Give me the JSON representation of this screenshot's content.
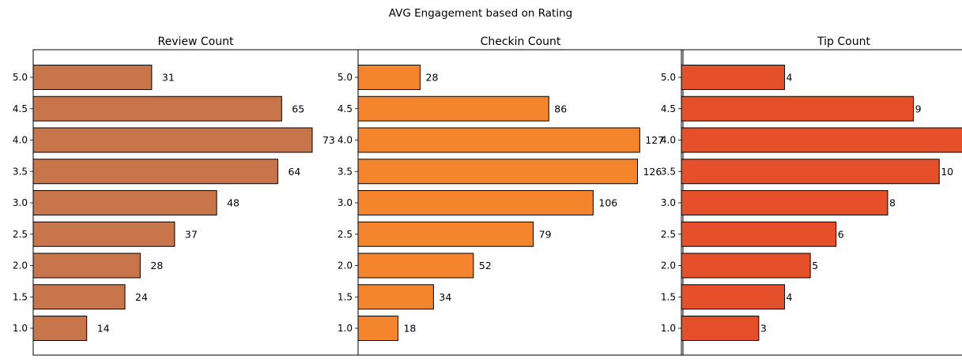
{
  "figure": {
    "title": "AVG Engagement based on Rating"
  },
  "chart_data": [
    {
      "type": "bar",
      "orientation": "horizontal",
      "title": "Review Count",
      "categories": [
        "1.0",
        "1.5",
        "2.0",
        "2.5",
        "3.0",
        "3.5",
        "4.0",
        "4.5",
        "5.0"
      ],
      "values": [
        14,
        24,
        28,
        37,
        48,
        64,
        73,
        65,
        31
      ],
      "xlabel": "",
      "ylabel": "",
      "xlim": [
        0,
        85
      ],
      "color": "#c8754b",
      "edgecolor": "#000000",
      "x_ticks_visible": false,
      "grid": false
    },
    {
      "type": "bar",
      "orientation": "horizontal",
      "title": "Checkin Count",
      "categories": [
        "1.0",
        "1.5",
        "2.0",
        "2.5",
        "3.0",
        "3.5",
        "4.0",
        "4.5",
        "5.0"
      ],
      "values": [
        18,
        34,
        52,
        79,
        106,
        126,
        127,
        86,
        28
      ],
      "xlabel": "",
      "ylabel": "",
      "xlim": [
        0,
        146.5
      ],
      "color": "#f5852c",
      "edgecolor": "#000000",
      "x_ticks_visible": false,
      "grid": false
    },
    {
      "type": "bar",
      "orientation": "horizontal",
      "title": "Tip Count",
      "categories": [
        "1.0",
        "1.5",
        "2.0",
        "2.5",
        "3.0",
        "3.5",
        "4.0",
        "4.5",
        "5.0"
      ],
      "values": [
        3,
        4,
        5,
        6,
        8,
        10,
        11,
        9,
        4
      ],
      "xlabel": "",
      "ylabel": "",
      "xlim": [
        0,
        12.6
      ],
      "color": "#e5502b",
      "edgecolor": "#000000",
      "x_ticks_visible": false,
      "grid": false
    }
  ]
}
